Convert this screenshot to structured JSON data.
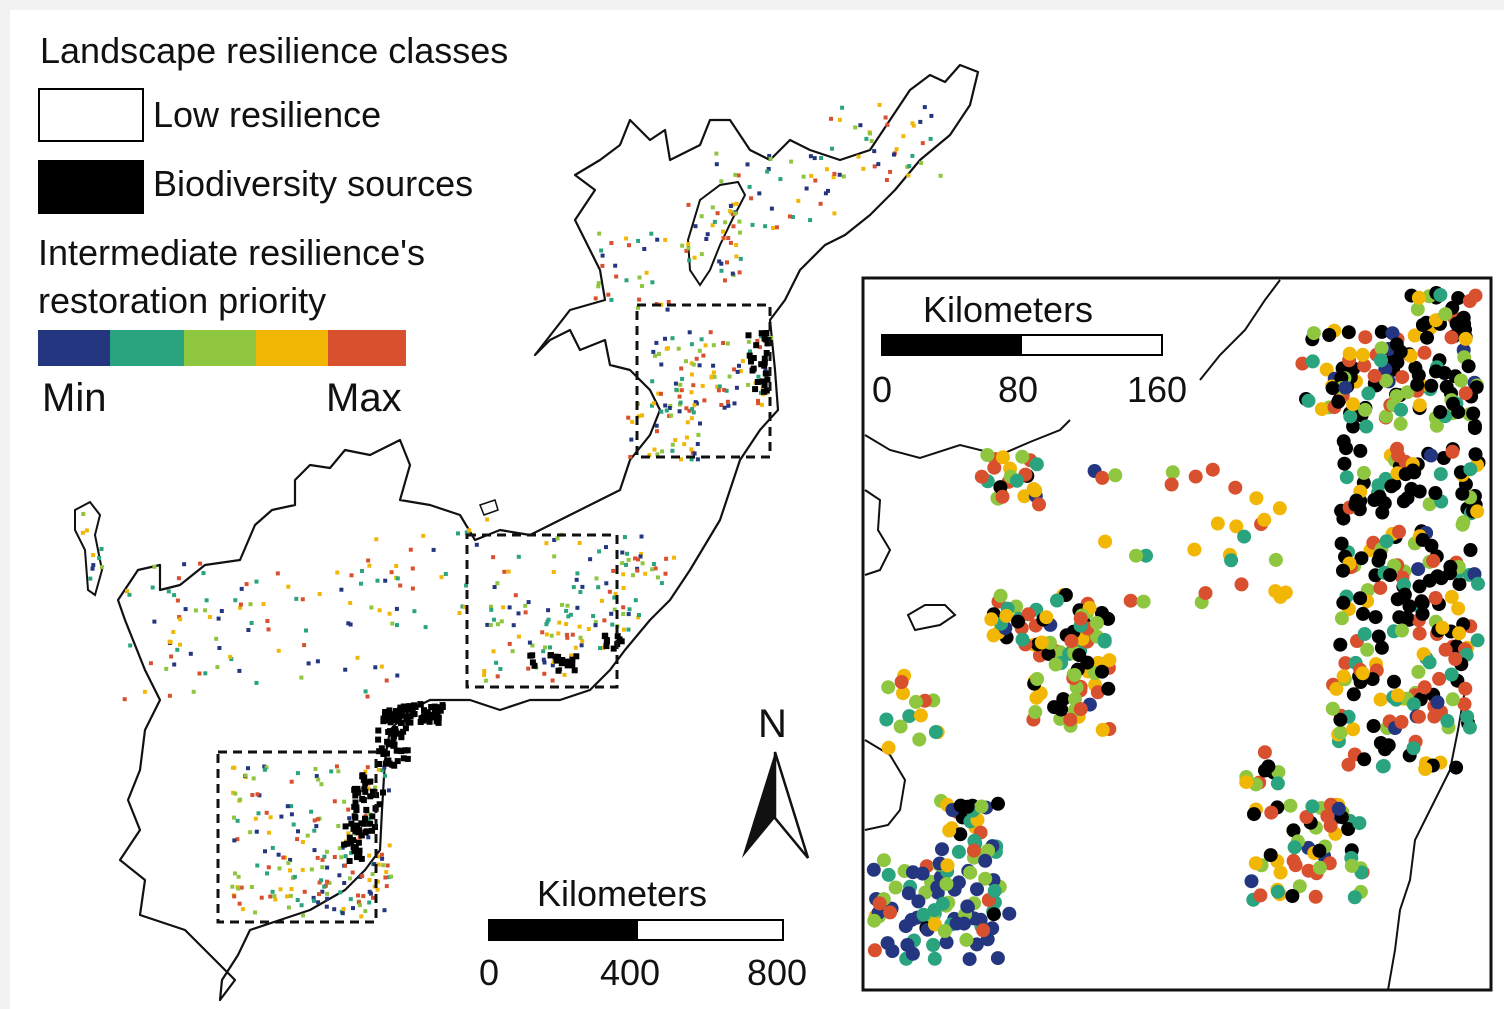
{
  "legend": {
    "title": "Landscape resilience classes",
    "low_label": "Low resilience",
    "source_label": "Biodiversity sources",
    "intermediate_title_line1": "Intermediate resilience's",
    "intermediate_title_line2": "restoration priority",
    "ramp_min": "Min",
    "ramp_max": "Max",
    "ramp_colors": [
      "#24367f",
      "#2aa37f",
      "#8ec63f",
      "#f2b705",
      "#d9502e"
    ],
    "low_color": "#ffffff",
    "source_color": "#000000"
  },
  "main_scalebar": {
    "title": "Kilometers",
    "ticks": [
      "0",
      "400",
      "800"
    ]
  },
  "inset_scalebar": {
    "title": "Kilometers",
    "ticks": [
      "0",
      "80",
      "160"
    ]
  },
  "north_arrow": {
    "label": "N"
  }
}
